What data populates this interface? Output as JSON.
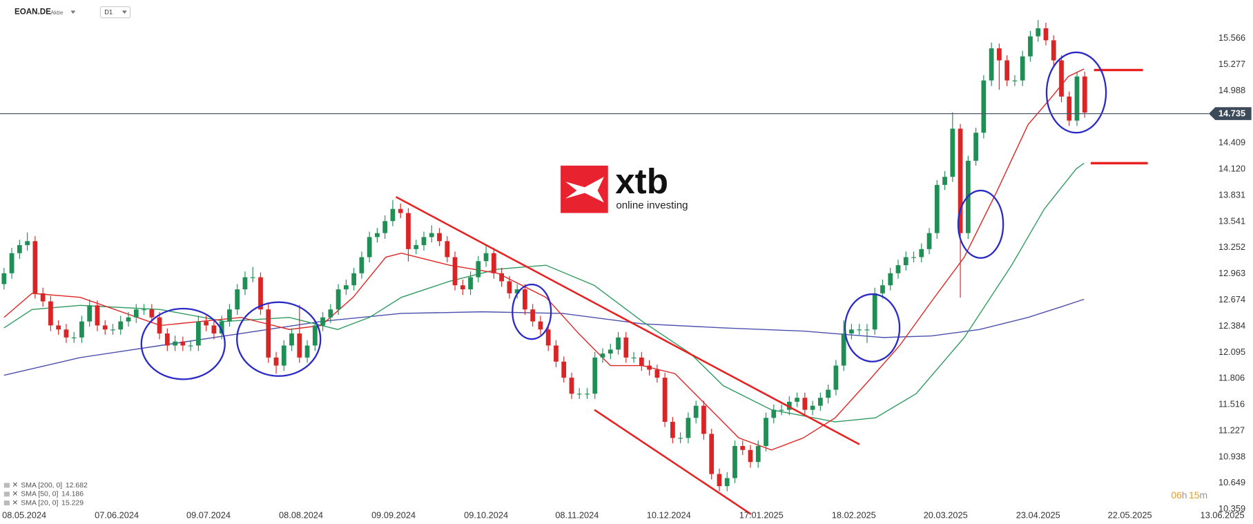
{
  "header": {
    "symbol": "EOAN.DE",
    "kind": "Aktie",
    "interval": "D1"
  },
  "logo": {
    "name": "xtb",
    "tagline": "online investing"
  },
  "timer": [
    "06",
    "h",
    "15",
    "m"
  ],
  "chart_data": {
    "type": "candlestick",
    "colors": {
      "up": "#1f8f55",
      "down": "#d92525"
    },
    "xlim": [
      -0.517,
      160.64
    ],
    "xticks": [
      {
        "value": 2.6,
        "label": "08.05.2024"
      },
      {
        "value": 14.5,
        "label": "07.06.2024"
      },
      {
        "value": 26.3,
        "label": "09.07.2024"
      },
      {
        "value": 38.2,
        "label": "08.08.2024"
      },
      {
        "value": 50.1,
        "label": "09.09.2024"
      },
      {
        "value": 62.0,
        "label": "09.10.2024"
      },
      {
        "value": 73.7,
        "label": "08.11.2024"
      },
      {
        "value": 85.5,
        "label": "10.12.2024"
      },
      {
        "value": 97.4,
        "label": "17.01.2025"
      },
      {
        "value": 109.3,
        "label": "18.02.2025"
      },
      {
        "value": 121.1,
        "label": "20.03.2025"
      },
      {
        "value": 133.0,
        "label": "23.04.2025"
      },
      {
        "value": 144.8,
        "label": "22.05.2025"
      },
      {
        "value": 156.7,
        "label": "13.06.2025"
      }
    ],
    "ylim": [
      10.35,
      15.99
    ],
    "yticks": [
      15.566,
      15.277,
      14.988,
      14.409,
      {
        "value": 14.12,
        "label": "14.120"
      },
      13.831,
      13.541,
      13.252,
      12.963,
      12.674,
      12.384,
      12.095,
      11.806,
      11.516,
      11.227,
      10.938,
      10.649,
      10.359
    ],
    "grid": false,
    "last_price": 14.735,
    "candles": [
      [
        12.85,
        13.03,
        12.79,
        12.97
      ],
      [
        12.97,
        13.25,
        12.91,
        13.192
      ],
      [
        13.192,
        13.34,
        13.13,
        13.281
      ],
      [
        13.281,
        13.42,
        13.22,
        13.325
      ],
      [
        13.325,
        13.38,
        12.69,
        12.748
      ],
      [
        12.748,
        12.81,
        12.6,
        12.659
      ],
      [
        12.659,
        12.72,
        12.33,
        12.393
      ],
      [
        12.393,
        12.45,
        12.29,
        12.348
      ],
      [
        12.348,
        12.41,
        12.2,
        12.26
      ],
      [
        12.26,
        12.32,
        12.2,
        12.26
      ],
      [
        12.26,
        12.5,
        12.2,
        12.437
      ],
      [
        12.437,
        12.68,
        12.38,
        12.615
      ],
      [
        12.615,
        12.67,
        12.33,
        12.393
      ],
      [
        12.393,
        12.45,
        12.29,
        12.348
      ],
      [
        12.348,
        12.41,
        12.29,
        12.348
      ],
      [
        12.348,
        12.5,
        12.29,
        12.437
      ],
      [
        12.437,
        12.54,
        12.38,
        12.482
      ],
      [
        12.482,
        12.63,
        12.42,
        12.57
      ],
      [
        12.57,
        12.63,
        12.51,
        12.57
      ],
      [
        12.57,
        12.63,
        12.42,
        12.482
      ],
      [
        12.482,
        12.54,
        12.24,
        12.304
      ],
      [
        12.304,
        12.36,
        12.11,
        12.171
      ],
      [
        12.171,
        12.28,
        12.11,
        12.215
      ],
      [
        12.215,
        12.27,
        12.11,
        12.171
      ],
      [
        12.171,
        12.23,
        12.11,
        12.171
      ],
      [
        12.171,
        12.5,
        12.11,
        12.437
      ],
      [
        12.437,
        12.5,
        12.33,
        12.393
      ],
      [
        12.393,
        12.45,
        12.24,
        12.304
      ],
      [
        12.304,
        12.5,
        12.24,
        12.437
      ],
      [
        12.437,
        12.63,
        12.38,
        12.57
      ],
      [
        12.57,
        12.85,
        12.51,
        12.792
      ],
      [
        12.792,
        12.99,
        12.73,
        12.926
      ],
      [
        12.926,
        13.04,
        12.87,
        12.926
      ],
      [
        12.926,
        12.98,
        12.51,
        12.57
      ],
      [
        12.57,
        12.63,
        11.98,
        12.038
      ],
      [
        12.038,
        12.1,
        11.86,
        11.949
      ],
      [
        11.949,
        12.23,
        11.89,
        12.171
      ],
      [
        12.171,
        12.36,
        12.11,
        12.304
      ],
      [
        12.304,
        12.62,
        11.98,
        12.038
      ],
      [
        12.038,
        12.23,
        11.98,
        12.171
      ],
      [
        12.171,
        12.45,
        12.11,
        12.393
      ],
      [
        12.393,
        12.54,
        12.33,
        12.482
      ],
      [
        12.482,
        12.63,
        12.42,
        12.57
      ],
      [
        12.57,
        12.85,
        12.51,
        12.792
      ],
      [
        12.792,
        12.9,
        12.73,
        12.837
      ],
      [
        12.837,
        13.03,
        12.78,
        12.97
      ],
      [
        12.97,
        13.21,
        12.91,
        13.148
      ],
      [
        13.148,
        13.43,
        13.09,
        13.37
      ],
      [
        13.37,
        13.47,
        13.31,
        13.414
      ],
      [
        13.414,
        13.61,
        13.35,
        13.547
      ],
      [
        13.547,
        13.78,
        13.49,
        13.681
      ],
      [
        13.681,
        13.74,
        13.58,
        13.636
      ],
      [
        13.636,
        13.69,
        13.1,
        13.237
      ],
      [
        13.237,
        13.34,
        13.18,
        13.281
      ],
      [
        13.281,
        13.43,
        13.22,
        13.37
      ],
      [
        13.37,
        13.5,
        13.31,
        13.414
      ],
      [
        13.414,
        13.47,
        13.27,
        13.325
      ],
      [
        13.325,
        13.38,
        13.09,
        13.148
      ],
      [
        13.148,
        13.21,
        12.78,
        12.837
      ],
      [
        12.837,
        12.9,
        12.73,
        12.792
      ],
      [
        12.792,
        12.99,
        12.73,
        12.926
      ],
      [
        12.926,
        13.16,
        12.87,
        13.104
      ],
      [
        13.104,
        13.28,
        13.04,
        13.192
      ],
      [
        13.192,
        13.25,
        12.91,
        12.97
      ],
      [
        12.97,
        13.03,
        12.82,
        12.881
      ],
      [
        12.881,
        12.94,
        12.69,
        12.748
      ],
      [
        12.748,
        12.85,
        12.69,
        12.792
      ],
      [
        12.792,
        12.85,
        12.51,
        12.57
      ],
      [
        12.57,
        12.63,
        12.38,
        12.437
      ],
      [
        12.437,
        12.5,
        12.29,
        12.348
      ],
      [
        12.348,
        12.41,
        12.11,
        12.171
      ],
      [
        12.171,
        12.23,
        11.93,
        11.993
      ],
      [
        11.993,
        12.05,
        11.76,
        11.815
      ],
      [
        11.815,
        11.87,
        11.58,
        11.638
      ],
      [
        11.638,
        11.7,
        11.58,
        11.638
      ],
      [
        11.638,
        11.7,
        11.58,
        11.638
      ],
      [
        11.638,
        12.1,
        11.58,
        12.038
      ],
      [
        12.038,
        12.14,
        11.98,
        12.082
      ],
      [
        12.082,
        12.19,
        12.02,
        12.126
      ],
      [
        12.126,
        12.32,
        12.07,
        12.26
      ],
      [
        12.26,
        12.32,
        11.98,
        12.038
      ],
      [
        12.038,
        12.1,
        11.98,
        12.038
      ],
      [
        12.038,
        12.1,
        11.89,
        11.949
      ],
      [
        11.949,
        12.01,
        11.84,
        11.904
      ],
      [
        11.904,
        11.96,
        11.76,
        11.815
      ],
      [
        11.815,
        11.87,
        11.27,
        11.327
      ],
      [
        11.327,
        11.38,
        11.09,
        11.149
      ],
      [
        11.149,
        11.21,
        11.09,
        11.149
      ],
      [
        11.149,
        11.43,
        11.09,
        11.371
      ],
      [
        11.371,
        11.56,
        11.31,
        11.505
      ],
      [
        11.505,
        11.56,
        11.13,
        11.194
      ],
      [
        11.194,
        11.25,
        10.69,
        10.75
      ],
      [
        10.75,
        10.81,
        10.56,
        10.616
      ],
      [
        10.616,
        10.77,
        10.56,
        10.705
      ],
      [
        10.705,
        11.12,
        10.65,
        11.06
      ],
      [
        11.06,
        11.12,
        10.96,
        11.016
      ],
      [
        11.016,
        11.07,
        10.82,
        10.883
      ],
      [
        10.883,
        11.12,
        10.82,
        11.06
      ],
      [
        11.06,
        11.43,
        11.0,
        11.371
      ],
      [
        11.371,
        11.52,
        11.31,
        11.46
      ],
      [
        11.46,
        11.52,
        11.4,
        11.46
      ],
      [
        11.46,
        11.61,
        11.4,
        11.549
      ],
      [
        11.549,
        11.65,
        11.49,
        11.593
      ],
      [
        11.593,
        11.65,
        11.4,
        11.46
      ],
      [
        11.46,
        11.56,
        11.4,
        11.505
      ],
      [
        11.505,
        11.65,
        11.45,
        11.593
      ],
      [
        11.593,
        11.74,
        11.53,
        11.682
      ],
      [
        11.682,
        12.01,
        11.62,
        11.949
      ],
      [
        11.949,
        12.45,
        11.89,
        12.304
      ],
      [
        12.304,
        12.41,
        12.24,
        12.348
      ],
      [
        12.348,
        12.41,
        12.29,
        12.348
      ],
      [
        12.348,
        12.41,
        12.2,
        12.348
      ],
      [
        12.348,
        12.81,
        12.29,
        12.748
      ],
      [
        12.748,
        12.9,
        12.69,
        12.837
      ],
      [
        12.837,
        13.03,
        12.78,
        12.97
      ],
      [
        12.97,
        13.12,
        12.91,
        13.059
      ],
      [
        13.059,
        13.21,
        13.0,
        13.148
      ],
      [
        13.148,
        13.21,
        13.09,
        13.148
      ],
      [
        13.148,
        13.3,
        13.09,
        13.237
      ],
      [
        13.237,
        13.47,
        13.18,
        13.414
      ],
      [
        13.414,
        14.0,
        13.35,
        13.947
      ],
      [
        13.947,
        14.1,
        13.89,
        14.036
      ],
      [
        14.036,
        14.75,
        13.98,
        14.569
      ],
      [
        14.569,
        14.62,
        12.7,
        13.414
      ],
      [
        13.414,
        14.27,
        13.35,
        14.214
      ],
      [
        14.214,
        14.58,
        14.16,
        14.524
      ],
      [
        14.524,
        15.16,
        14.46,
        15.102
      ],
      [
        15.102,
        15.52,
        15.04,
        15.457
      ],
      [
        15.457,
        15.51,
        15.0,
        15.324
      ],
      [
        15.324,
        15.38,
        15.04,
        15.102
      ],
      [
        15.102,
        15.16,
        15.04,
        15.102
      ],
      [
        15.102,
        15.43,
        15.04,
        15.368
      ],
      [
        15.368,
        15.65,
        15.31,
        15.59
      ],
      [
        15.59,
        15.77,
        15.53,
        15.679
      ],
      [
        15.679,
        15.74,
        15.49,
        15.546
      ],
      [
        15.546,
        15.6,
        15.27,
        15.324
      ],
      [
        15.324,
        15.38,
        14.86,
        14.924
      ],
      [
        14.924,
        14.98,
        14.6,
        14.658
      ],
      [
        14.658,
        15.2,
        14.6,
        15.146
      ],
      [
        15.146,
        15.2,
        14.69,
        14.747
      ]
    ],
    "series": [
      {
        "name": "SMA [200, 0]",
        "color": "#4b4fae",
        "x": [
          0,
          9.8,
          20.1,
          30.5,
          40.8,
          51.1,
          61.5,
          71.8,
          82.1,
          92.5,
          102.8,
          113.1,
          119.3,
          125.5,
          131.7,
          135.9,
          138.9
        ],
        "values": [
          11.842,
          12.038,
          12.171,
          12.304,
          12.437,
          12.526,
          12.544,
          12.526,
          12.411,
          12.366,
          12.331,
          12.26,
          12.277,
          12.348,
          12.482,
          12.597,
          12.682
        ]
      },
      {
        "name": "SMA [50, 0]",
        "color": "#2e9a5e",
        "x": [
          0,
          3.6,
          9.8,
          20.1,
          28.4,
          36.7,
          42.9,
          47.0,
          51.1,
          57.3,
          63.5,
          69.7,
          75.9,
          82.1,
          88.3,
          92.5,
          98.7,
          106.9,
          112.1,
          117.3,
          123.5,
          129.6,
          133.8,
          137.9,
          138.9
        ],
        "values": [
          12.366,
          12.57,
          12.615,
          12.57,
          12.437,
          12.482,
          12.348,
          12.482,
          12.704,
          12.881,
          13.015,
          13.059,
          12.837,
          12.437,
          12.082,
          11.727,
          11.46,
          11.327,
          11.371,
          11.638,
          12.26,
          13.059,
          13.681,
          14.125,
          14.186
        ]
      },
      {
        "name": "SMA [20, 0]",
        "color": "#e02424",
        "x": [
          0,
          3.6,
          9.8,
          20.1,
          30.5,
          36.7,
          40.8,
          44.9,
          49.1,
          51.1,
          57.3,
          63.5,
          69.7,
          73.9,
          78.0,
          82.1,
          86.3,
          90.4,
          94.5,
          98.7,
          102.8,
          106.9,
          111.1,
          115.2,
          119.3,
          123.5,
          127.6,
          131.7,
          134.8,
          136.9,
          138.9
        ],
        "values": [
          12.482,
          12.748,
          12.704,
          12.393,
          12.482,
          12.348,
          12.393,
          12.704,
          13.148,
          13.192,
          13.059,
          12.97,
          12.704,
          12.304,
          11.949,
          11.949,
          11.86,
          11.505,
          11.149,
          11.016,
          11.149,
          11.371,
          11.771,
          12.171,
          12.659,
          13.148,
          13.858,
          14.613,
          14.924,
          15.146,
          15.229
        ]
      }
    ]
  }
}
